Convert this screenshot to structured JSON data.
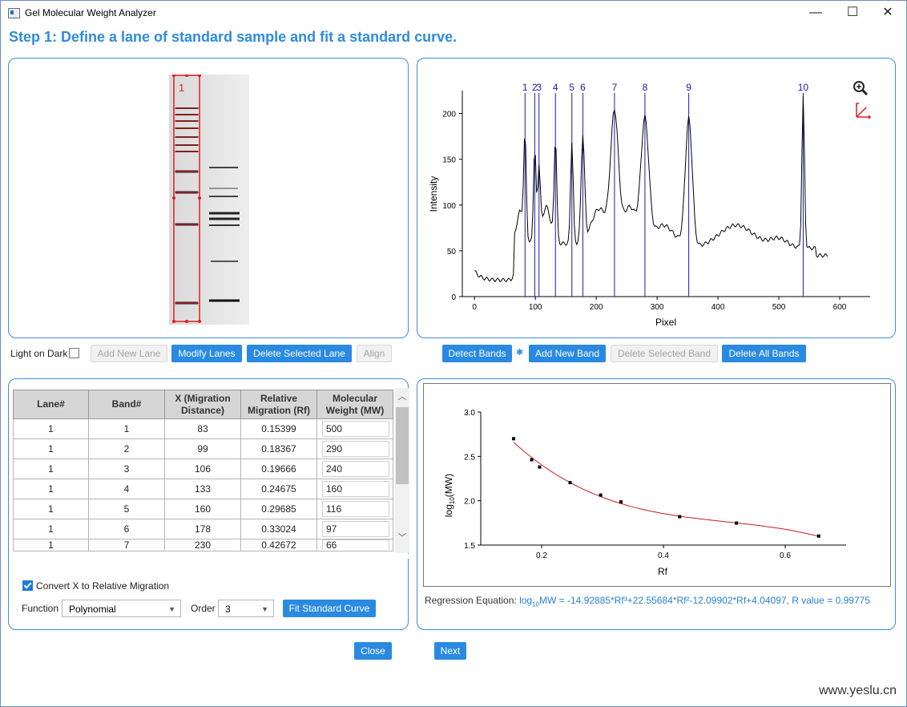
{
  "window": {
    "title": "Gel Molecular Weight Analyzer",
    "minimize": "—",
    "maximize": "☐",
    "close": "✕"
  },
  "step_title": "Step 1: Define a lane of standard sample and fit a standard curve.",
  "gel": {
    "lane_label": "1"
  },
  "lane_controls": {
    "light_on_dark": "Light on Dark",
    "add_new_lane": "Add New Lane",
    "modify_lanes": "Modify Lanes",
    "delete_selected_lane": "Delete Selected Lane",
    "align": "Align"
  },
  "profile_chart": {
    "xlabel": "Pixel",
    "ylabel": "Intensity",
    "xticks": [
      "0",
      "100",
      "200",
      "300",
      "400",
      "500",
      "600"
    ],
    "yticks": [
      "0",
      "50",
      "100",
      "150",
      "200"
    ],
    "band_labels": [
      "1",
      "2",
      "3",
      "4",
      "5",
      "6",
      "7",
      "8",
      "9",
      "10"
    ],
    "band_x": [
      83,
      99,
      106,
      133,
      160,
      178,
      230,
      280,
      352,
      540
    ],
    "zoom_icon": "zoom-in",
    "axes_icon": "rescale-axes"
  },
  "band_controls": {
    "detect_bands": "Detect Bands",
    "add_new_band": "Add New Band",
    "delete_selected_band": "Delete Selected Band",
    "delete_all_bands": "Delete All Bands"
  },
  "table": {
    "headers": [
      "Lane#",
      "Band#",
      "X (Migration Distance)",
      "Relative Migration (Rf)",
      "Molecular Weight (MW)"
    ],
    "rows": [
      [
        "1",
        "1",
        "83",
        "0.15399",
        "500"
      ],
      [
        "1",
        "2",
        "99",
        "0.18367",
        "290"
      ],
      [
        "1",
        "3",
        "106",
        "0.19666",
        "240"
      ],
      [
        "1",
        "4",
        "133",
        "0.24675",
        "160"
      ],
      [
        "1",
        "5",
        "160",
        "0.29685",
        "116"
      ],
      [
        "1",
        "6",
        "178",
        "0.33024",
        "97"
      ],
      [
        "1",
        "7",
        "230",
        "0.42672",
        "66"
      ]
    ]
  },
  "fit_controls": {
    "convert_x": "Convert X to Relative Migration",
    "function_label": "Function",
    "function_value": "Polynomial",
    "order_label": "Order",
    "order_value": "3",
    "fit_button": "Fit Standard Curve"
  },
  "chart_data": [
    {
      "type": "line",
      "xlabel": "Pixel",
      "ylabel": "Intensity",
      "xlim": [
        -20,
        650
      ],
      "ylim": [
        0,
        225
      ],
      "band_positions": [
        83,
        99,
        106,
        133,
        160,
        178,
        230,
        280,
        352,
        540
      ]
    },
    {
      "type": "scatter",
      "xlabel": "Rf",
      "ylabel_parts": [
        "log",
        "10",
        "(MW)"
      ],
      "xlim": [
        0.1,
        0.7
      ],
      "ylim": [
        1.5,
        3.0
      ],
      "xticks": [
        "0.2",
        "0.4",
        "0.6"
      ],
      "yticks": [
        "1.5",
        "2.0",
        "2.5",
        "3.0"
      ],
      "x": [
        0.15399,
        0.18367,
        0.19666,
        0.24675,
        0.29685,
        0.33024,
        0.42672,
        0.52,
        0.655
      ],
      "y": [
        2.699,
        2.462,
        2.38,
        2.204,
        2.064,
        1.987,
        1.82,
        1.748,
        1.602
      ],
      "fit": {
        "a3": -14.92885,
        "a2": 22.55684,
        "a1": -12.09902,
        "a0": 4.04097,
        "color": "#cc1c1c"
      }
    }
  ],
  "regression": {
    "label": "Regression Equation:",
    "log": "log",
    "sub": "10",
    "equation": "MW = -14.92885*Rf³+22.55684*Rf²-12.09902*Rf+4.04097, R value = 0.99775"
  },
  "nav": {
    "close": "Close",
    "next": "Next"
  },
  "watermark": "www.yeslu.cn",
  "colors": {
    "accent": "#2a8ae2",
    "band_line": "#1a1ab0",
    "lane_box": "#e01e1e",
    "fit_line": "#cc1c1c"
  }
}
